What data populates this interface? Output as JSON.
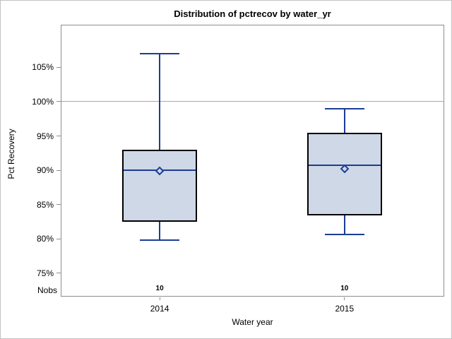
{
  "figure": {
    "title": "Distribution of pctrecov by water_yr"
  },
  "chart_data": {
    "type": "boxplot",
    "title": "Distribution of pctrecov by water_yr",
    "xlabel": "Water year",
    "ylabel": "Pct Recovery",
    "categories": [
      "2014",
      "2015"
    ],
    "nobs_label": "Nobs",
    "nobs_values": [
      "10",
      "10"
    ],
    "y_ticks": [
      {
        "value": 75,
        "label": "75%"
      },
      {
        "value": 80,
        "label": "80%"
      },
      {
        "value": 85,
        "label": "85%"
      },
      {
        "value": 90,
        "label": "90%"
      },
      {
        "value": 95,
        "label": "95%"
      },
      {
        "value": 100,
        "label": "100%"
      },
      {
        "value": 105,
        "label": "105%"
      }
    ],
    "ylim": [
      71.6,
      111.2
    ],
    "reference_line": 100,
    "grid": false,
    "legend": "none",
    "series": [
      {
        "category": "2014",
        "whisker_low": 79.8,
        "q1": 82.5,
        "median": 90.0,
        "mean": 89.9,
        "q3": 93.0,
        "whisker_high": 107.0,
        "n": 10
      },
      {
        "category": "2015",
        "whisker_low": 80.7,
        "q1": 83.4,
        "median": 90.7,
        "mean": 90.2,
        "q3": 95.5,
        "whisker_high": 99.0,
        "n": 10
      }
    ],
    "colors": {
      "box_fill": "#ced8e6",
      "box_border": "#000000",
      "line": "#1c3d96",
      "axis": "#8e8e8e",
      "reference_line": "#a6a6a6",
      "text": "#000000"
    }
  }
}
